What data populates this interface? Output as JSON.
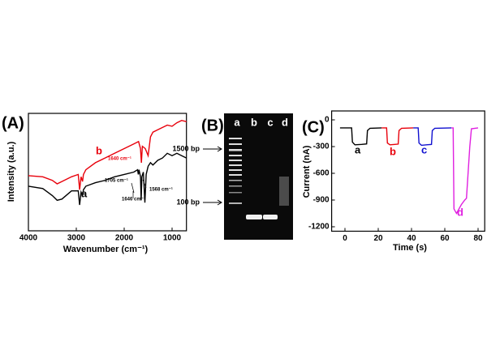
{
  "chart_data": [
    {
      "type": "line",
      "panel_label": "(A)",
      "x_label": "Wavenumber (cm⁻¹)",
      "y_label": "Intensity (a.u.)",
      "xlim": [
        4000,
        700
      ],
      "ylim": [
        0,
        100
      ],
      "xticks": [
        4000,
        3000,
        2000,
        1000
      ],
      "annotations": [
        "1640 cm⁻¹",
        "1705 cm⁻¹",
        "1646 cm⁻¹",
        "1568 cm⁻¹"
      ],
      "series": [
        {
          "name": "a",
          "color": "#000000",
          "x": [
            4000,
            3700,
            3500,
            3400,
            3300,
            3100,
            2960,
            2930,
            2900,
            2870,
            2850,
            2800,
            2600,
            2400,
            2200,
            2000,
            1800,
            1720,
            1705,
            1690,
            1660,
            1646,
            1630,
            1600,
            1568,
            1540,
            1500,
            1450,
            1400,
            1300,
            1200,
            1100,
            1000,
            900,
            800,
            700
          ],
          "values": [
            38,
            36,
            30,
            26,
            27,
            34,
            34,
            22,
            33,
            30,
            35,
            38,
            41,
            43,
            46,
            48,
            50,
            52,
            48,
            52,
            46,
            26,
            46,
            50,
            24,
            48,
            55,
            58,
            56,
            60,
            62,
            66,
            64,
            66,
            64,
            62
          ]
        },
        {
          "name": "b",
          "color": "#e8000b",
          "x": [
            4000,
            3700,
            3500,
            3400,
            3300,
            3100,
            2960,
            2930,
            2900,
            2870,
            2850,
            2800,
            2600,
            2400,
            2200,
            2000,
            1800,
            1700,
            1660,
            1640,
            1620,
            1560,
            1500,
            1450,
            1400,
            1300,
            1200,
            1100,
            1000,
            900,
            800,
            700
          ],
          "values": [
            47,
            46,
            43,
            40,
            42,
            46,
            48,
            35,
            46,
            42,
            48,
            52,
            58,
            62,
            66,
            70,
            74,
            76,
            70,
            58,
            72,
            70,
            64,
            80,
            84,
            86,
            88,
            90,
            89,
            92,
            94,
            93
          ]
        }
      ]
    },
    {
      "type": "line",
      "panel_label": "(C)",
      "x_label": "Time (s)",
      "y_label": "Current (nA)",
      "xlim": [
        -8,
        84
      ],
      "ylim": [
        -1250,
        100
      ],
      "xticks": [
        0,
        20,
        40,
        60,
        80
      ],
      "yticks": [
        0,
        -300,
        -600,
        -900,
        -1200
      ],
      "series": [
        {
          "name": "a",
          "color": "#000000",
          "x": [
            -3,
            4,
            4.5,
            6,
            10,
            13,
            13.5,
            15,
            22
          ],
          "values": [
            -90,
            -90,
            -250,
            -280,
            -275,
            -270,
            -120,
            -95,
            -90
          ]
        },
        {
          "name": "b",
          "color": "#e8000b",
          "x": [
            22,
            25,
            25.5,
            27,
            30,
            32,
            32.5,
            34,
            41
          ],
          "values": [
            -90,
            -90,
            -260,
            -280,
            -275,
            -272,
            -120,
            -95,
            -90
          ]
        },
        {
          "name": "c",
          "color": "#1010d0",
          "x": [
            41,
            44,
            44.5,
            46,
            49,
            52,
            52.5,
            54,
            64
          ],
          "values": [
            -90,
            -90,
            -260,
            -285,
            -280,
            -275,
            -120,
            -95,
            -90
          ]
        },
        {
          "name": "d",
          "color": "#e020e0",
          "x": [
            64,
            65,
            65.5,
            67,
            70,
            72,
            73,
            75,
            76,
            80
          ],
          "values": [
            -90,
            -90,
            -1000,
            -1050,
            -950,
            -900,
            -880,
            -300,
            -100,
            -90
          ]
        }
      ]
    }
  ],
  "gel": {
    "panel_label": "(B)",
    "lanes": [
      "a",
      "b",
      "c",
      "d"
    ],
    "markers": [
      "1500 bp",
      "100 bp"
    ]
  }
}
